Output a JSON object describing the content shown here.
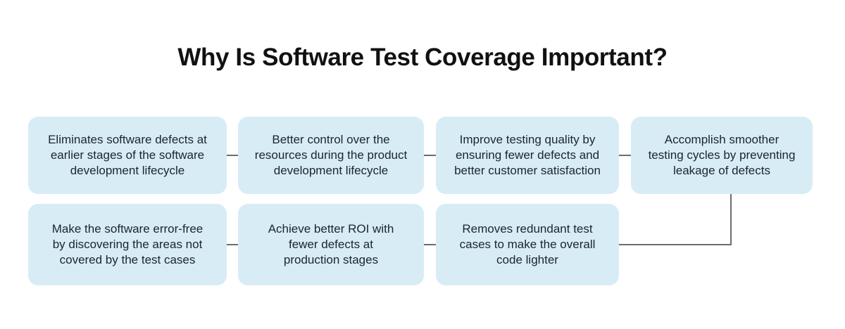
{
  "colors": {
    "background": "#ffffff",
    "title_text": "#111111",
    "box_fill": "#d8ecf6",
    "box_text": "#1a2532",
    "connector": "#6d6d6d"
  },
  "title": {
    "text": "Why Is Software Test Coverage Important?"
  },
  "diagram": {
    "boxes": [
      {
        "id": "benefit-1",
        "text": "Eliminates software defects at\nearlier stages of the software\ndevelopment lifecycle"
      },
      {
        "id": "benefit-2",
        "text": "Better control over the\nresources during the product\ndevelopment lifecycle"
      },
      {
        "id": "benefit-3",
        "text": "Improve testing quality by\nensuring fewer defects and\nbetter customer satisfaction"
      },
      {
        "id": "benefit-4",
        "text": "Accomplish smoother\ntesting cycles by preventing\nleakage of defects"
      },
      {
        "id": "benefit-5",
        "text": "Make the software error-free\nby discovering the areas not\ncovered by the test cases"
      },
      {
        "id": "benefit-6",
        "text": "Achieve better ROI with\nfewer defects at\nproduction stages"
      },
      {
        "id": "benefit-7",
        "text": "Removes redundant test\ncases to make the overall\ncode lighter"
      }
    ]
  }
}
